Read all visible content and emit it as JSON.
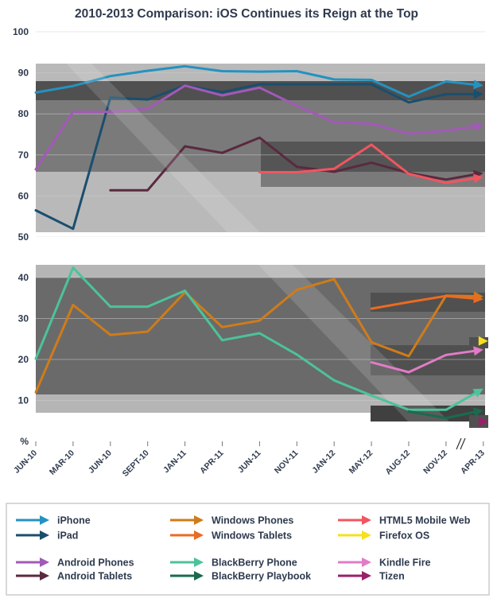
{
  "chart_data": {
    "type": "line",
    "title": "2010-2013 Comparison: iOS Continues its Reign at the Top",
    "xlabel": "",
    "ylabel": "%",
    "categories": [
      "JUN-10",
      "MAR-10",
      "JUN-10",
      "SEPT-10",
      "JAN-11",
      "APR-11",
      "JUN-11",
      "NOV-11",
      "JAN-12",
      "MAY-12",
      "AUG-12",
      "NOV-12",
      "APR-13"
    ],
    "upper_panel": {
      "ylim": [
        50,
        100
      ],
      "ticks": [
        "100",
        "90",
        "80",
        "70",
        "60",
        "50"
      ]
    },
    "lower_panel": {
      "ylim": [
        0,
        45
      ],
      "ticks": [
        "40",
        "30",
        "20",
        "10",
        "%"
      ]
    },
    "series": [
      {
        "name": "iPhone",
        "panel": "upper",
        "color": "#2492c0",
        "values": [
          85.2,
          86.8,
          89.2,
          90.5,
          91.6,
          90.4,
          90.3,
          90.4,
          88.4,
          88.3,
          84.2,
          87.9,
          86.9
        ]
      },
      {
        "name": "iPad",
        "panel": "upper",
        "color": "#1a4e6e",
        "values": [
          56.5,
          52.0,
          84.0,
          83.5,
          86.9,
          85.3,
          87.2,
          87.2,
          87.2,
          87.2,
          82.8,
          84.8,
          84.8
        ]
      },
      {
        "name": "Android Phones",
        "panel": "upper",
        "color": "#a259b7",
        "values": [
          66.5,
          80.5,
          80.5,
          81.2,
          86.9,
          84.5,
          86.4,
          82.0,
          78.0,
          77.6,
          75.2,
          75.9,
          77.2
        ]
      },
      {
        "name": "Android Tablets",
        "panel": "upper",
        "color": "#5a2a3f",
        "values": [
          null,
          null,
          61.4,
          61.4,
          72.1,
          70.5,
          74.2,
          67.1,
          65.9,
          68.1,
          65.6,
          64.0,
          65.6
        ]
      },
      {
        "name": "HTML5 Mobile Web",
        "panel": "upper",
        "color": "#f05660",
        "values": [
          null,
          null,
          null,
          null,
          null,
          null,
          65.8,
          65.8,
          66.6,
          72.5,
          65.4,
          63.2,
          64.6
        ]
      },
      {
        "name": "Windows Phones",
        "panel": "lower",
        "color": "#cf7c1a",
        "values": [
          12.0,
          33.3,
          26.0,
          26.8,
          36.4,
          27.9,
          29.5,
          37.0,
          39.6,
          24.2,
          20.8,
          35.6,
          35.4
        ]
      },
      {
        "name": "Windows Tablets",
        "panel": "lower",
        "color": "#ec6b22",
        "values": [
          null,
          null,
          null,
          null,
          null,
          null,
          null,
          null,
          null,
          32.4,
          34.0,
          35.5,
          34.7
        ]
      },
      {
        "name": "BlackBerry Phone",
        "panel": "lower",
        "color": "#4cc39a",
        "values": [
          20.2,
          42.4,
          32.9,
          32.9,
          36.8,
          24.7,
          26.4,
          21.2,
          14.9,
          11.2,
          7.7,
          7.7,
          12.9
        ]
      },
      {
        "name": "Kindle Fire",
        "panel": "lower",
        "color": "#e27cc6",
        "values": [
          null,
          null,
          null,
          null,
          null,
          null,
          null,
          null,
          null,
          19.3,
          16.9,
          21.1,
          22.4
        ]
      },
      {
        "name": "BlackBerry Playbook",
        "panel": "lower",
        "color": "#1a6b4d",
        "values": [
          null,
          null,
          null,
          null,
          null,
          null,
          null,
          null,
          null,
          null,
          7.3,
          5.7,
          7.6
        ]
      },
      {
        "name": "Firefox OS",
        "panel": "lower",
        "color": "#f7e01c",
        "values": [
          null,
          null,
          null,
          null,
          null,
          null,
          null,
          null,
          null,
          null,
          null,
          null,
          24.5
        ]
      },
      {
        "name": "Tizen",
        "panel": "lower",
        "color": "#9b1f6a",
        "values": [
          null,
          null,
          null,
          null,
          null,
          null,
          null,
          null,
          null,
          null,
          null,
          null,
          4.8
        ]
      }
    ],
    "legend": [
      [
        "iPhone",
        "Windows Phones",
        "HTML5 Mobile Web"
      ],
      [
        "iPad",
        "Windows Tablets",
        "Firefox OS"
      ],
      [
        "Android Phones",
        "BlackBerry Phone",
        "Kindle Fire"
      ],
      [
        "Android Tablets",
        "BlackBerry Playbook",
        "Tizen"
      ]
    ],
    "legend_placement": "bottom"
  }
}
